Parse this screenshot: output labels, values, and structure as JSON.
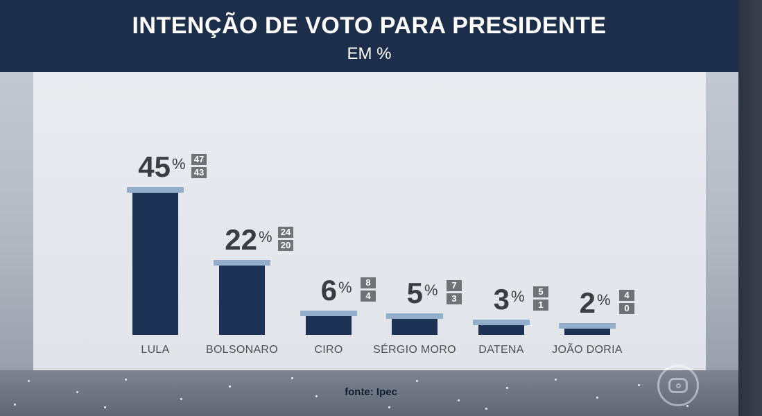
{
  "header": {
    "title": "INTENÇÃO DE VOTO PARA PRESIDENTE",
    "subtitle": "EM %"
  },
  "source": "fonte: Ipec",
  "brand": {
    "logo_icon": "globo-logo-icon"
  },
  "colors": {
    "header_bg": "#1d2e4a",
    "bar": "#1d3255",
    "bar_range": "#8aa7c8",
    "range_box": "#6f7378"
  },
  "chart_data": {
    "type": "bar",
    "title": "INTENÇÃO DE VOTO PARA PRESIDENTE",
    "subtitle": "EM %",
    "xlabel": "",
    "ylabel": "",
    "ylim": [
      0,
      50
    ],
    "grid": false,
    "percent_sign": "%",
    "categories": [
      "LULA",
      "BOLSONARO",
      "CIRO",
      "SÉRGIO MORO",
      "DATENA",
      "JOÃO DORIA"
    ],
    "values": [
      45,
      22,
      6,
      5,
      3,
      2
    ],
    "range_high": [
      47,
      24,
      8,
      7,
      5,
      4
    ],
    "range_low": [
      43,
      20,
      4,
      3,
      1,
      0
    ],
    "annotation": "fonte: Ipec"
  }
}
